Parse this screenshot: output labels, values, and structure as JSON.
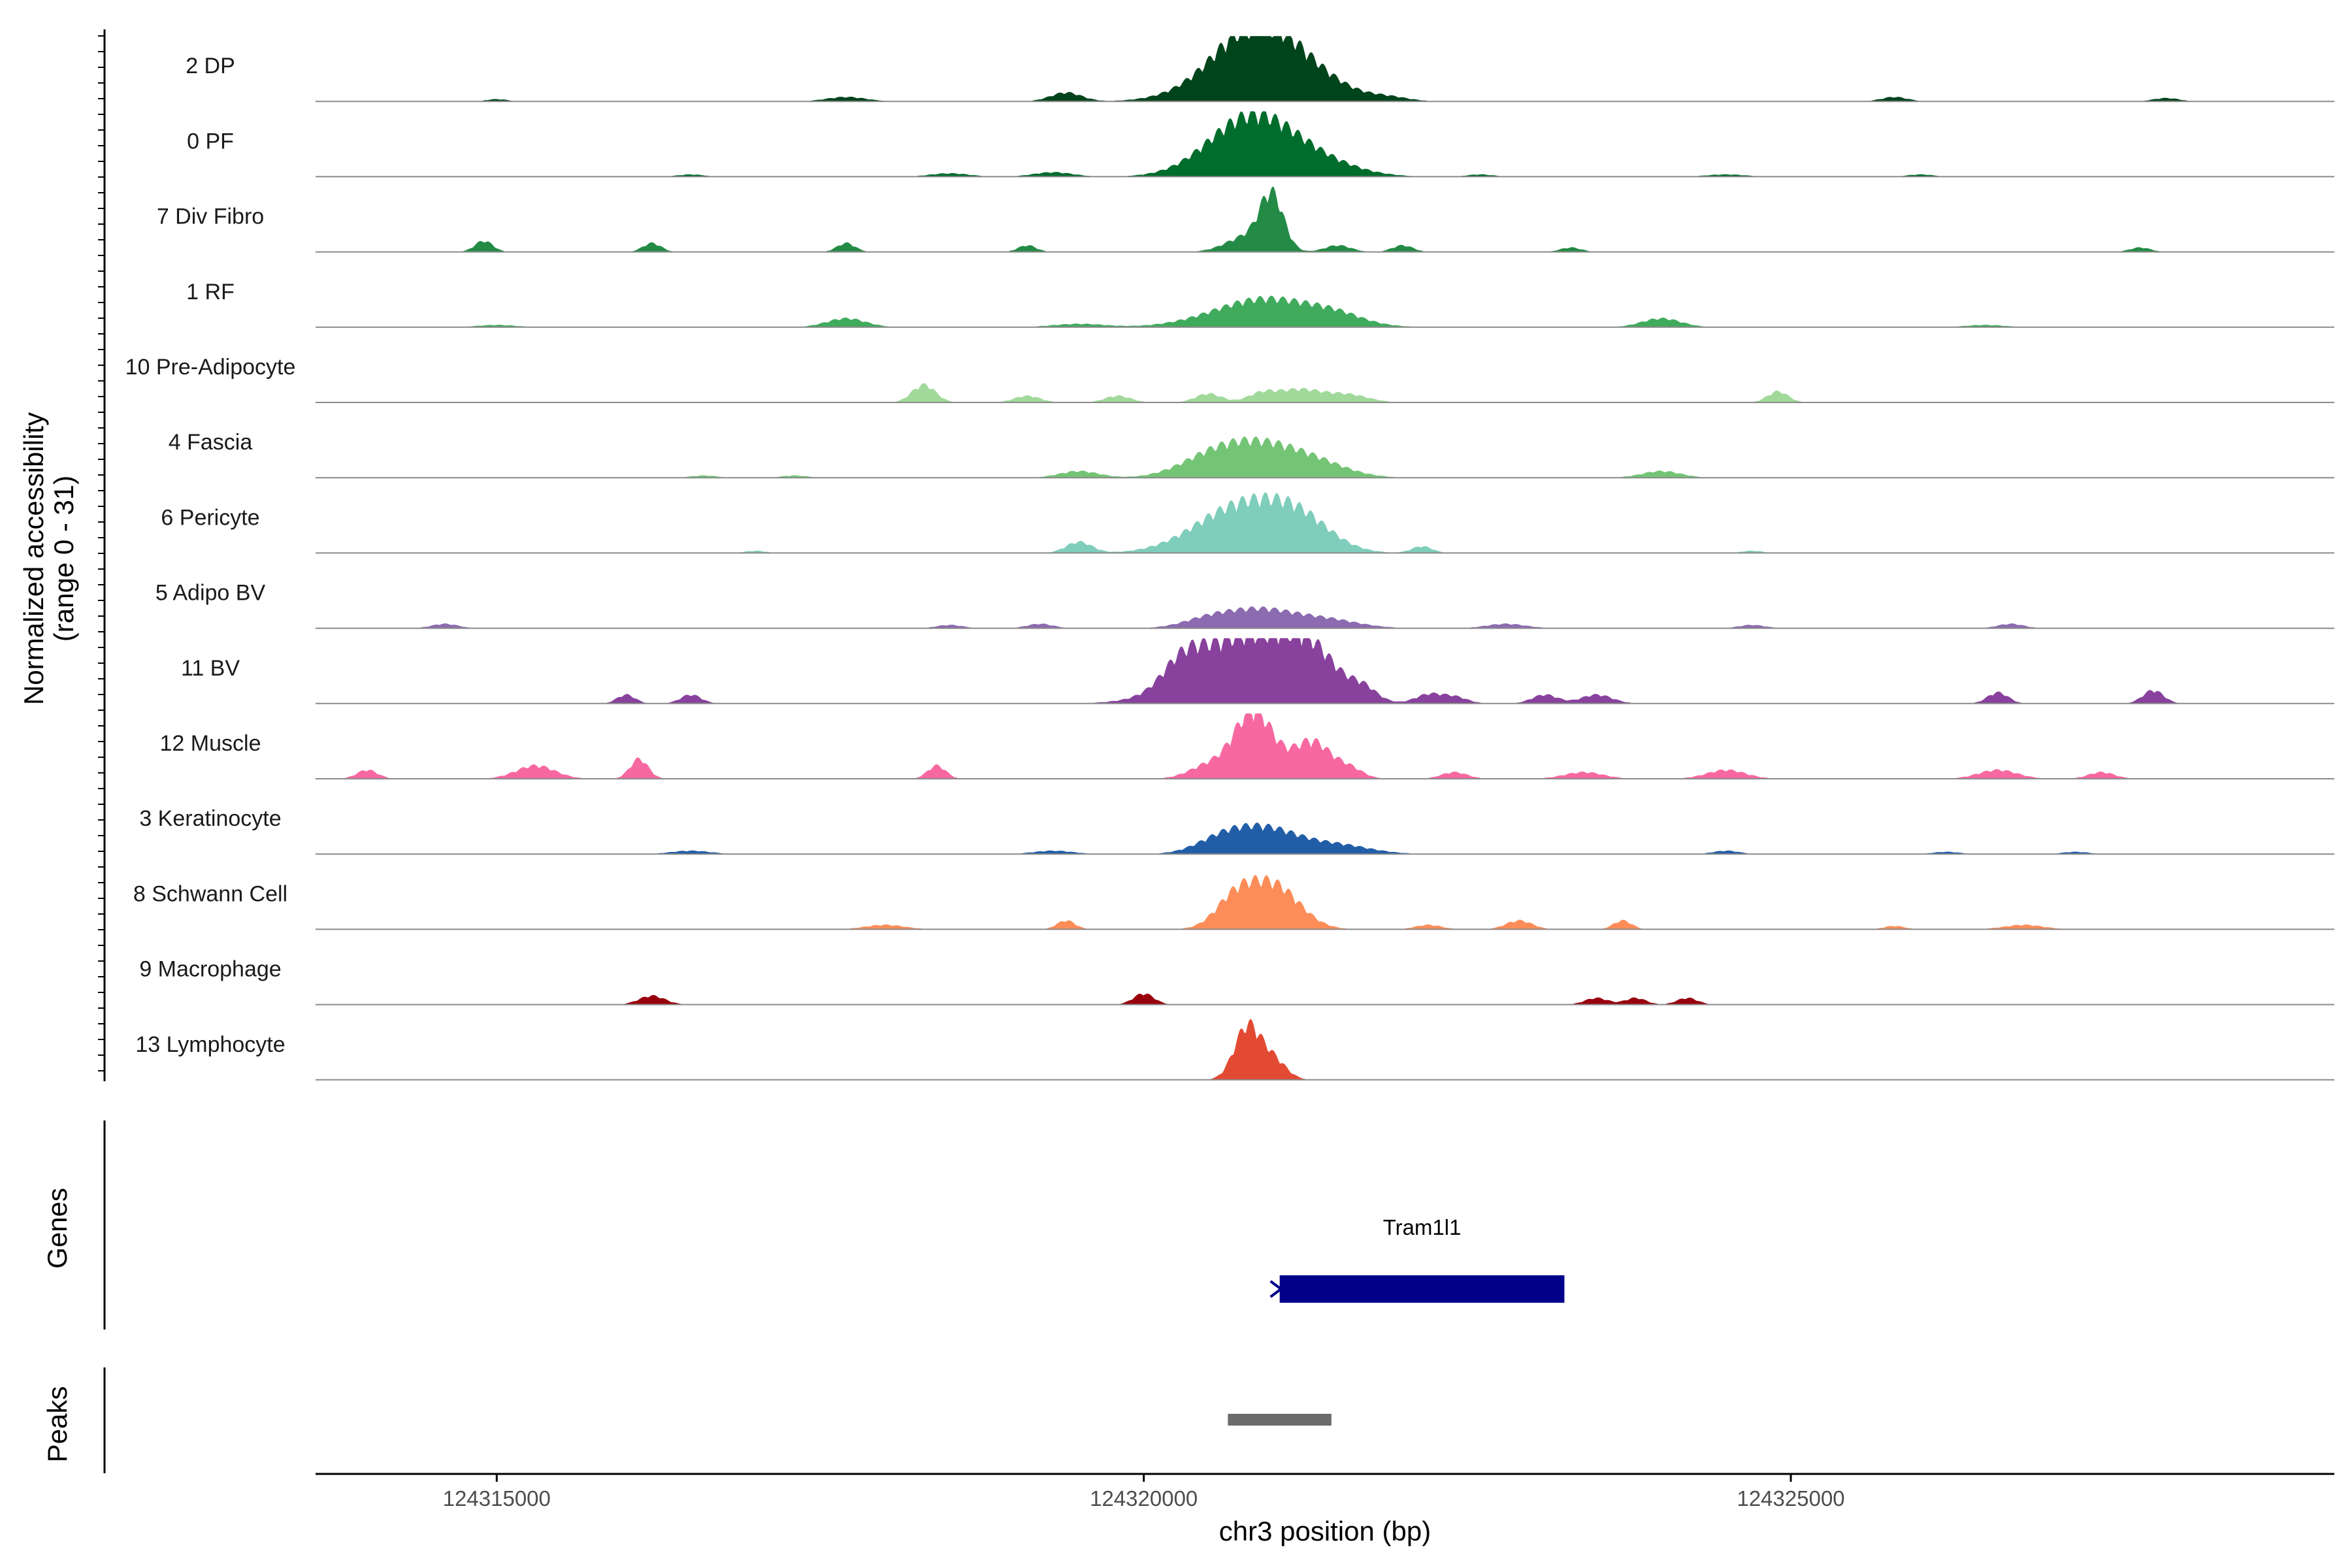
{
  "chart_data": {
    "type": "area",
    "xlabel": "chr3 position (bp)",
    "ylabel_lines": [
      "Normalized accessibility",
      "(range 0 - 31)"
    ],
    "ylim": [
      0,
      31
    ],
    "xlim": [
      124313600,
      124329200
    ],
    "x_ticks": [
      124315000,
      124320000,
      124325000
    ],
    "x_tick_labels": [
      "124315000",
      "124320000",
      "124325000"
    ],
    "grid": false,
    "series": [
      {
        "name": "2 DP",
        "color": "#00441b",
        "peaks": [
          [
            124320900,
            24,
            300
          ],
          [
            124320700,
            10,
            350
          ],
          [
            124321300,
            8,
            300
          ],
          [
            124319400,
            4,
            120
          ],
          [
            124317700,
            2,
            150
          ],
          [
            124325800,
            2,
            100
          ],
          [
            124327900,
            1.5,
            100
          ],
          [
            124315000,
            1,
            80
          ],
          [
            124321900,
            1.5,
            150
          ]
        ]
      },
      {
        "name": "0 PF",
        "color": "#006d2c",
        "peaks": [
          [
            124320900,
            20,
            300
          ],
          [
            124320650,
            9,
            300
          ],
          [
            124321350,
            6,
            300
          ],
          [
            124319300,
            2,
            150
          ],
          [
            124318500,
            1.5,
            150
          ],
          [
            124316500,
            1,
            100
          ],
          [
            124322600,
            1,
            100
          ],
          [
            124324500,
            1,
            150
          ],
          [
            124326000,
            1,
            100
          ]
        ]
      },
      {
        "name": "7 Div Fibro",
        "color": "#238b45",
        "peaks": [
          [
            124320990,
            24,
            90
          ],
          [
            124320800,
            7,
            160
          ],
          [
            124314900,
            5,
            70
          ],
          [
            124316200,
            4,
            70
          ],
          [
            124317700,
            4,
            70
          ],
          [
            124319100,
            3,
            70
          ],
          [
            124321500,
            3,
            100
          ],
          [
            124322000,
            3,
            80
          ],
          [
            124323300,
            2,
            80
          ],
          [
            124327700,
            2,
            80
          ]
        ]
      },
      {
        "name": "1 RF",
        "color": "#41ab5d",
        "peaks": [
          [
            124320950,
            13,
            400
          ],
          [
            124317700,
            4,
            150
          ],
          [
            124324000,
            4,
            150
          ],
          [
            124321500,
            3,
            200
          ],
          [
            124319500,
            1.5,
            200
          ],
          [
            124315000,
            1,
            150
          ],
          [
            124326500,
            1,
            150
          ]
        ]
      },
      {
        "name": "10 Pre-Adipocyte",
        "color": "#a1d99b",
        "peaks": [
          [
            124318300,
            8,
            90
          ],
          [
            124324900,
            5,
            80
          ],
          [
            124321200,
            6,
            200
          ],
          [
            124320500,
            4,
            100
          ],
          [
            124319100,
            3,
            100
          ],
          [
            124319800,
            3,
            100
          ],
          [
            124321600,
            3,
            150
          ],
          [
            124320900,
            3,
            100
          ]
        ]
      },
      {
        "name": "4 Fascia",
        "color": "#74c476",
        "peaks": [
          [
            124320900,
            14,
            300
          ],
          [
            124320500,
            7,
            250
          ],
          [
            124321350,
            5,
            250
          ],
          [
            124319500,
            3,
            150
          ],
          [
            124324000,
            3,
            150
          ],
          [
            124316600,
            1,
            100
          ],
          [
            124317300,
            1,
            100
          ]
        ]
      },
      {
        "name": "6 Pericyte",
        "color": "#7fcdbb",
        "peaks": [
          [
            124320750,
            21,
            350
          ],
          [
            124321200,
            12,
            250
          ],
          [
            124319500,
            5,
            100
          ],
          [
            124322150,
            3,
            80
          ],
          [
            124324700,
            1,
            80
          ],
          [
            124317000,
            1,
            80
          ]
        ]
      },
      {
        "name": "5 Adipo BV",
        "color": "#8c6bb1",
        "peaks": [
          [
            124320900,
            8,
            250
          ],
          [
            124320500,
            4,
            200
          ],
          [
            124321400,
            4,
            250
          ],
          [
            124314600,
            2,
            100
          ],
          [
            124319200,
            2,
            100
          ],
          [
            124322800,
            2,
            150
          ],
          [
            124326700,
            2,
            100
          ],
          [
            124318500,
            1.5,
            100
          ],
          [
            124324700,
            1.5,
            100
          ]
        ]
      },
      {
        "name": "11 BV",
        "color": "#88419d",
        "peaks": [
          [
            124320800,
            31,
            400
          ],
          [
            124321300,
            15,
            200
          ],
          [
            124320300,
            10,
            150
          ],
          [
            124321700,
            5,
            100
          ],
          [
            124316000,
            4,
            70
          ],
          [
            124316500,
            4,
            80
          ],
          [
            124322200,
            4,
            100
          ],
          [
            124323100,
            4,
            100
          ],
          [
            124323500,
            4,
            120
          ],
          [
            124326600,
            5,
            80
          ],
          [
            124327800,
            6,
            80
          ],
          [
            124322400,
            3,
            100
          ]
        ]
      },
      {
        "name": "12 Muscle",
        "color": "#f768a1",
        "peaks": [
          [
            124320850,
            31,
            150
          ],
          [
            124321300,
            17,
            150
          ],
          [
            124320500,
            6,
            150
          ],
          [
            124316100,
            9,
            70
          ],
          [
            124315300,
            6,
            150
          ],
          [
            124318400,
            6,
            70
          ],
          [
            124321600,
            4,
            100
          ],
          [
            124324500,
            4,
            150
          ],
          [
            124326600,
            4,
            150
          ],
          [
            124314000,
            4,
            80
          ],
          [
            124323400,
            3,
            150
          ],
          [
            124322400,
            3,
            100
          ],
          [
            124327400,
            3,
            100
          ]
        ]
      },
      {
        "name": "3 Keratinocyte",
        "color": "#225ea8",
        "peaks": [
          [
            124320950,
            11,
            250
          ],
          [
            124320600,
            6,
            200
          ],
          [
            124321500,
            4,
            250
          ],
          [
            124316500,
            1.5,
            150
          ],
          [
            124319300,
            1.5,
            150
          ],
          [
            124324500,
            1.5,
            100
          ],
          [
            124326200,
            1,
            100
          ],
          [
            124327200,
            1,
            100
          ]
        ]
      },
      {
        "name": "8 Schwann Cell",
        "color": "#fc8d59",
        "peaks": [
          [
            124321000,
            20,
            200
          ],
          [
            124320700,
            12,
            150
          ],
          [
            124319400,
            4,
            70
          ],
          [
            124322900,
            4,
            100
          ],
          [
            124323700,
            4,
            70
          ],
          [
            124318000,
            2,
            150
          ],
          [
            124322200,
            2,
            100
          ],
          [
            124326800,
            2,
            150
          ],
          [
            124325800,
            1.5,
            80
          ]
        ]
      },
      {
        "name": "9 Macrophage",
        "color": "#99000d",
        "peaks": [
          [
            124320000,
            5,
            80
          ],
          [
            124316200,
            4,
            100
          ],
          [
            124323500,
            3,
            90
          ],
          [
            124323800,
            3,
            80
          ],
          [
            124324200,
            3,
            80
          ]
        ]
      },
      {
        "name": "13 Lymphocyte",
        "color": "#e34a33",
        "peaks": [
          [
            124320800,
            24,
            100
          ],
          [
            124321000,
            9,
            100
          ]
        ]
      }
    ]
  },
  "genes_track": {
    "label": "Genes",
    "gene_name": "Tram1l1",
    "start": 124321050,
    "end": 124323250,
    "color": "#00008b"
  },
  "peaks_track": {
    "label": "Peaks",
    "start": 124320650,
    "end": 124321450,
    "color": "#6b6b6b"
  }
}
